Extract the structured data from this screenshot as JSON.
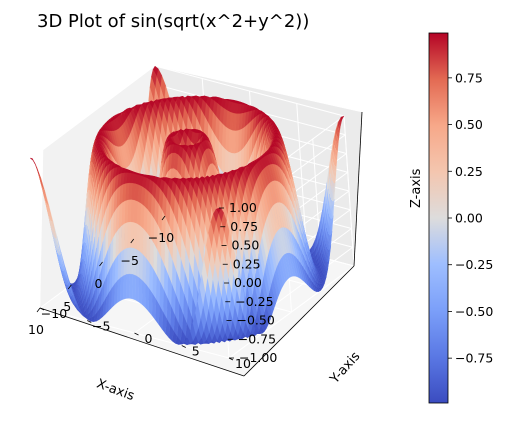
{
  "chart_data": {
    "type": "surface3d",
    "title": "3D Plot of sin(sqrt(x^2+y^2))",
    "function": "sin(sqrt(x^2+y^2))",
    "xlabel": "X-axis",
    "ylabel": "Y-axis",
    "zlabel": "Z-axis",
    "xlim": [
      -10,
      10
    ],
    "ylim": [
      -10,
      10
    ],
    "zlim": [
      -1.0,
      1.0
    ],
    "x_ticks": [
      "−10",
      "−5",
      "0",
      "5",
      "10"
    ],
    "y_ticks": [
      "−10",
      "−5",
      "0",
      "5",
      "10"
    ],
    "z_ticks": [
      "−1.00",
      "−0.75",
      "−0.50",
      "−0.25",
      "0.00",
      "0.25",
      "0.50",
      "0.75",
      "1.00"
    ],
    "colormap": "coolwarm",
    "color_range": [
      -0.99,
      0.99
    ],
    "colorbar": {
      "ticks": [
        "−0.75",
        "−0.50",
        "−0.25",
        "0.00",
        "0.25",
        "0.50",
        "0.75"
      ],
      "tick_values": [
        -0.75,
        -0.5,
        -0.25,
        0.0,
        0.25,
        0.5,
        0.75
      ]
    },
    "grid": true
  }
}
